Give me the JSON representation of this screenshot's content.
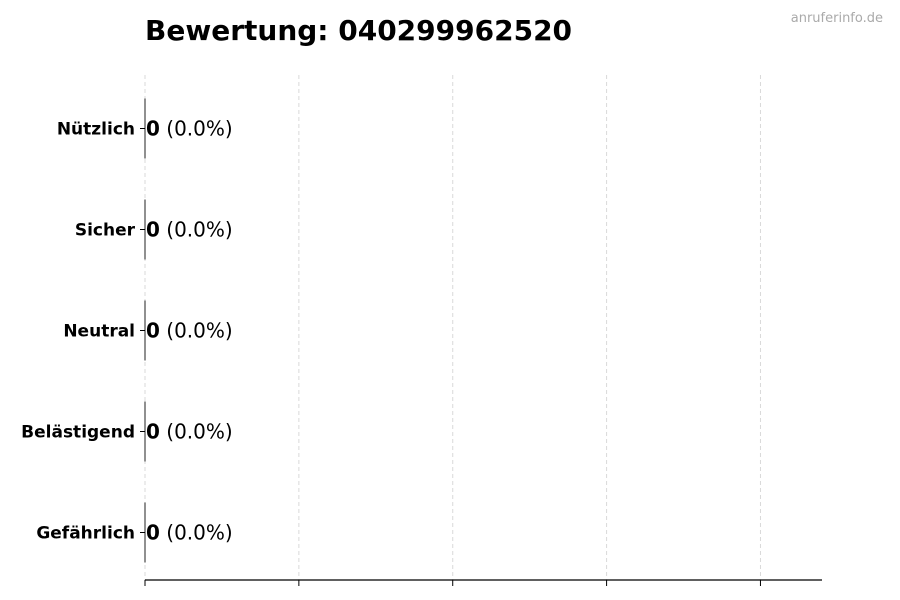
{
  "chart_data": {
    "type": "bar",
    "orientation": "horizontal",
    "title": "Bewertung: 040299962520",
    "watermark": "anruferinfo.de",
    "categories": [
      "Nützlich",
      "Sicher",
      "Neutral",
      "Belästigend",
      "Gefährlich"
    ],
    "values": [
      0,
      0,
      0,
      0,
      0
    ],
    "percent_labels": [
      "(0.0%)",
      "(0.0%)",
      "(0.0%)",
      "(0.0%)",
      "(0.0%)"
    ],
    "xlim": [
      0,
      4.4
    ],
    "xticks": [
      0,
      1,
      2,
      3,
      4
    ],
    "xtick_labels_shown": false,
    "grid": "vertical dashed",
    "colors": {
      "grid": "#d9d9d9",
      "axis": "#000000",
      "watermark": "#aaaaaa"
    }
  }
}
